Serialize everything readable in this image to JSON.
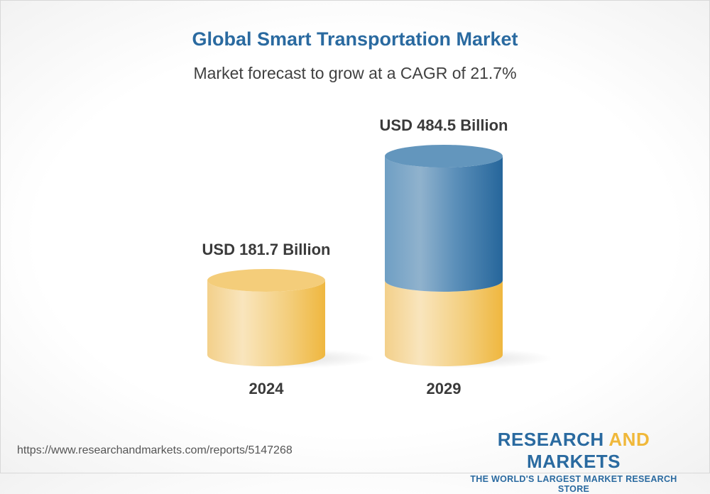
{
  "title": "Global Smart Transportation Market",
  "subtitle": "Market forecast to grow at a CAGR of 21.7%",
  "chart_data": {
    "type": "bar",
    "style": "3d-cylinder",
    "categories": [
      "2024",
      "2029"
    ],
    "values": [
      181.7,
      484.5
    ],
    "data_labels": [
      "USD 181.7 Billion",
      "USD 484.5 Billion"
    ],
    "unit": "USD Billion",
    "colors": {
      "base": "#f2c15a",
      "growth": "#2d6a9c"
    }
  },
  "footer": {
    "url": "https://www.researchandmarkets.com/reports/5147268",
    "logo_part1": "RESEARCH ",
    "logo_part2": "AND",
    "logo_part3": " MARKETS",
    "tagline": "THE WORLD'S LARGEST MARKET RESEARCH STORE"
  }
}
